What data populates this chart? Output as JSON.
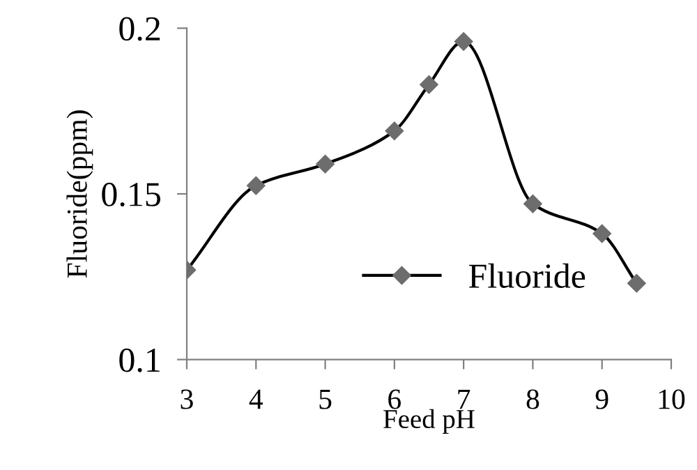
{
  "chart_data": {
    "type": "line",
    "xlabel": "Feed pH",
    "ylabel": "Fluoride(ppm)",
    "series": [
      {
        "name": "Fluoride",
        "color": "#6d6d6d",
        "x": [
          3,
          4,
          5,
          6,
          6.5,
          7,
          8,
          9,
          9.5
        ],
        "values": [
          0.127,
          0.1525,
          0.159,
          0.169,
          0.183,
          0.196,
          0.147,
          0.138,
          0.123
        ]
      }
    ],
    "xlim": [
      3,
      10
    ],
    "xticks": [
      3,
      4,
      5,
      6,
      7,
      8,
      9,
      10
    ],
    "ylim": [
      0.1,
      0.2
    ],
    "yticks": [
      0.1,
      0.15,
      0.2
    ],
    "grid": false,
    "legend": "bottom right",
    "marker": "diamond",
    "line_style": "solid"
  }
}
